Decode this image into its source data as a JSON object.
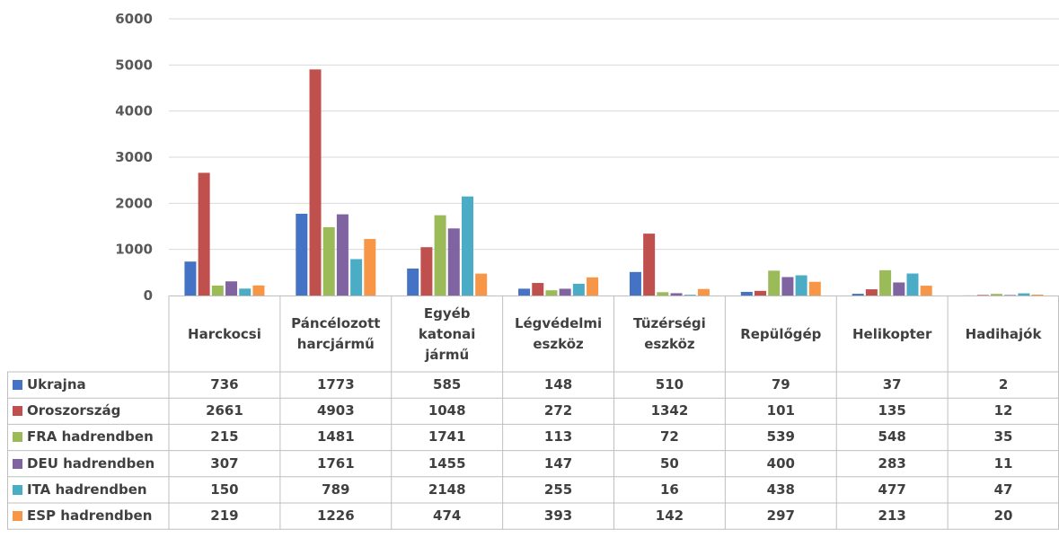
{
  "chart_data": {
    "type": "bar",
    "categories": [
      [
        "Harckocsi"
      ],
      [
        "Páncélozott",
        "harcjármű"
      ],
      [
        "Egyéb",
        "katonai",
        "jármű"
      ],
      [
        "Légvédelmi",
        "eszköz"
      ],
      [
        "Tüzérségi",
        "eszköz"
      ],
      [
        "Repülőgép"
      ],
      [
        "Helikopter"
      ],
      [
        "Hadihajók"
      ]
    ],
    "series": [
      {
        "name": "Ukrajna",
        "color": "#4472c4",
        "values": [
          736,
          1773,
          585,
          148,
          510,
          79,
          37,
          2
        ]
      },
      {
        "name": "Oroszország",
        "color": "#c0504d",
        "values": [
          2661,
          4903,
          1048,
          272,
          1342,
          101,
          135,
          12
        ]
      },
      {
        "name": "FRA hadrendben",
        "color": "#9bbb59",
        "values": [
          215,
          1481,
          1741,
          113,
          72,
          539,
          548,
          35
        ]
      },
      {
        "name": "DEU hadrendben",
        "color": "#8064a2",
        "values": [
          307,
          1761,
          1455,
          147,
          50,
          400,
          283,
          11
        ]
      },
      {
        "name": "ITA hadrendben",
        "color": "#4bacc6",
        "values": [
          150,
          789,
          2148,
          255,
          16,
          438,
          477,
          47
        ]
      },
      {
        "name": "ESP hadrendben",
        "color": "#f79646",
        "values": [
          219,
          1226,
          474,
          393,
          142,
          297,
          213,
          20
        ]
      }
    ],
    "yticks": [
      "0",
      "1000",
      "2000",
      "3000",
      "4000",
      "5000",
      "6000"
    ],
    "ylim": [
      0,
      6000
    ],
    "grid": true,
    "legend": "data-table"
  }
}
